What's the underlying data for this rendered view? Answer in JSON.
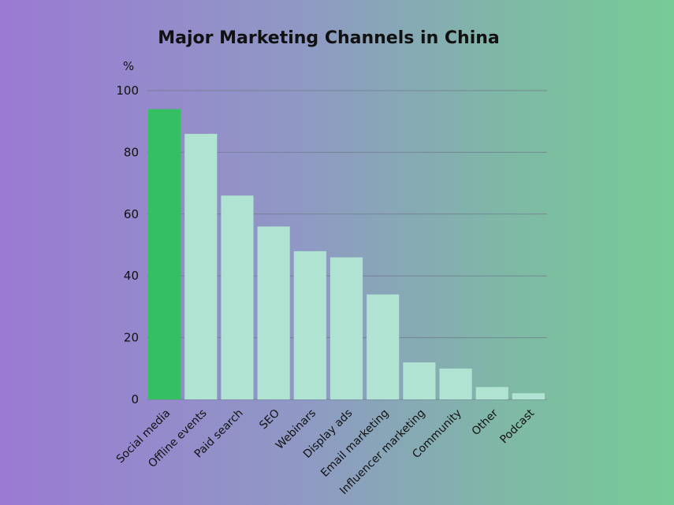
{
  "chart_data": {
    "type": "bar",
    "title": "Major Marketing Channels in China",
    "ylabel": "%",
    "xlabel": "",
    "ylim": [
      0,
      100
    ],
    "yticks": [
      0,
      20,
      40,
      60,
      80,
      100
    ],
    "grid": true,
    "categories": [
      "Social media",
      "Offline events",
      "Paid search",
      "SEO",
      "Webinars",
      "Display ads",
      "Email marketing",
      "Influencer marketing",
      "Community",
      "Other",
      "Podcast"
    ],
    "values": [
      94,
      86,
      66,
      56,
      48,
      46,
      34,
      12,
      10,
      4,
      2
    ],
    "colors": {
      "highlight": "#34bf62",
      "bar": "#b0e3d2",
      "grid": "#6f7d8c",
      "text": "#111111"
    },
    "highlight_index": 0
  }
}
